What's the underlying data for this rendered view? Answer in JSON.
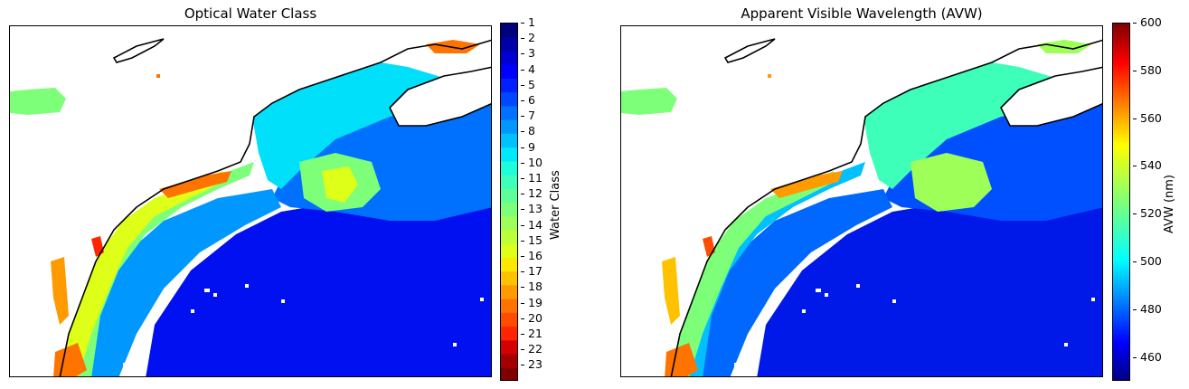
{
  "panels": {
    "left": {
      "title": "Optical Water Class",
      "colorbar": {
        "label": "Water Class",
        "ticks": [
          "1",
          "2",
          "3",
          "4",
          "5",
          "6",
          "7",
          "8",
          "9",
          "10",
          "11",
          "12",
          "13",
          "14",
          "15",
          "16",
          "17",
          "18",
          "19",
          "20",
          "21",
          "22",
          "23"
        ],
        "colors": [
          "#00007f",
          "#0000a8",
          "#0000d2",
          "#0000fd",
          "#0020ff",
          "#0048ff",
          "#0070ff",
          "#0098ff",
          "#00c0ff",
          "#00e8fb",
          "#1dfdda",
          "#3dffb9",
          "#5dff99",
          "#7dff79",
          "#9dff58",
          "#bdff38",
          "#ddff18",
          "#fde900",
          "#ffc200",
          "#ff9a00",
          "#ff7300",
          "#ff4c00",
          "#ff2500",
          "#d50000",
          "#a40000",
          "#800000"
        ],
        "range": [
          1,
          24
        ]
      }
    },
    "right": {
      "title": "Apparent Visible Wavelength (AVW)",
      "colorbar": {
        "label": "AVW (nm)",
        "ticks": [
          "460",
          "480",
          "500",
          "520",
          "540",
          "560",
          "580",
          "600"
        ],
        "tick_values": [
          460,
          480,
          500,
          520,
          540,
          560,
          580,
          600
        ],
        "range": [
          450,
          600
        ]
      }
    }
  }
}
